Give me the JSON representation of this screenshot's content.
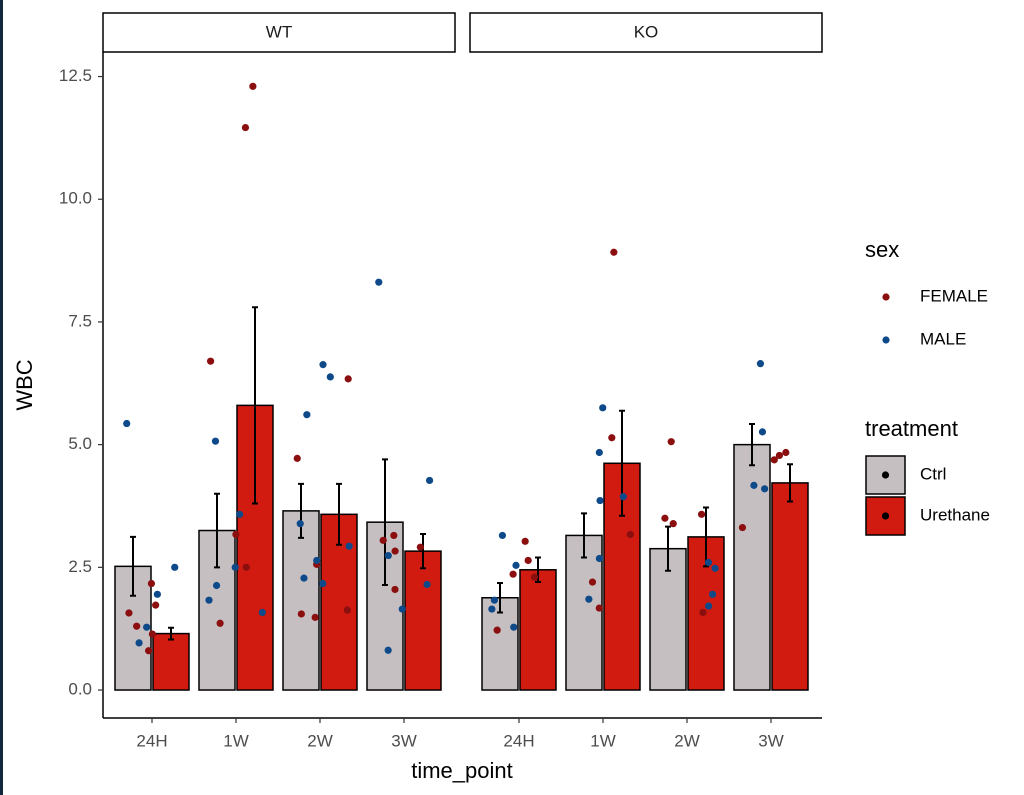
{
  "chart_data": {
    "type": "bar",
    "x_label": "time_point",
    "y_label": "WBC",
    "ylim": [
      -0.57,
      13.0
    ],
    "yticks": [
      {
        "value": 0,
        "label": "0.0"
      },
      2.5,
      {
        "value": 5,
        "label": "5.0"
      },
      7.5,
      {
        "value": 10,
        "label": "10.0"
      },
      12.5
    ],
    "categories": [
      "24H",
      "1W",
      "2W",
      "3W"
    ],
    "series": [
      {
        "name": "Ctrl",
        "color": "#c6bfc1"
      },
      {
        "name": "Urethane",
        "color": "#d11a10"
      }
    ],
    "sex_title": "sex",
    "treatment_title": "treatment",
    "sex_groups": [
      {
        "name": "FEMALE",
        "color": "#8b0f0f"
      },
      {
        "name": "MALE",
        "color": "#0e4a8a"
      }
    ],
    "facets": [
      {
        "title": "WT",
        "series": [
          {
            "values": [
              2.52,
              3.25,
              3.65,
              3.42
            ],
            "errors": [
              0.6,
              0.75,
              0.55,
              1.28
            ]
          },
          {
            "values": [
              1.15,
              5.8,
              3.58,
              2.83
            ],
            "errors": [
              0.12,
              2.0,
              0.62,
              0.35
            ]
          }
        ],
        "points": [
          [
            [
              2.17,
              1.73,
              1.57,
              1.3,
              0.8,
              1.14
            ],
            [
              12.3,
              11.46,
              6.7,
              3.17,
              1.36,
              2.5
            ],
            [
              6.34,
              4.72,
              2.56,
              1.63,
              1.55,
              1.48
            ],
            [
              3.15,
              3.05,
              2.91,
              2.83,
              2.05
            ]
          ],
          [
            [
              5.43,
              2.5,
              1.95,
              1.28,
              0.96
            ],
            [
              5.07,
              3.58,
              2.5,
              2.13,
              1.83,
              1.58
            ],
            [
              6.63,
              6.38,
              5.61,
              3.39,
              2.93,
              2.64,
              2.28,
              2.17
            ],
            [
              8.31,
              4.27,
              2.74,
              2.15,
              1.65,
              0.81
            ]
          ]
        ]
      },
      {
        "title": "KO",
        "series": [
          {
            "values": [
              1.88,
              3.15,
              2.88,
              5.0
            ],
            "errors": [
              0.3,
              0.45,
              0.45,
              0.42
            ]
          },
          {
            "values": [
              2.45,
              4.62,
              3.12,
              4.22
            ],
            "errors": [
              0.25,
              1.07,
              0.6,
              0.38
            ]
          }
        ],
        "points": [
          [
            [
              3.03,
              2.36,
              2.3,
              2.64,
              1.22
            ],
            [
              8.92,
              5.14,
              3.17,
              2.2,
              1.67
            ],
            [
              5.06,
              3.58,
              3.5,
              3.39,
              1.58
            ],
            [
              4.84,
              4.78,
              4.69,
              3.31
            ]
          ],
          [
            [
              3.15,
              2.54,
              1.83,
              1.65,
              1.28
            ],
            [
              5.75,
              4.84,
              3.94,
              3.86,
              2.68,
              1.85
            ],
            [
              2.6,
              2.48,
              1.95,
              1.71
            ],
            [
              6.65,
              5.26,
              4.17,
              4.1
            ]
          ]
        ]
      }
    ]
  }
}
